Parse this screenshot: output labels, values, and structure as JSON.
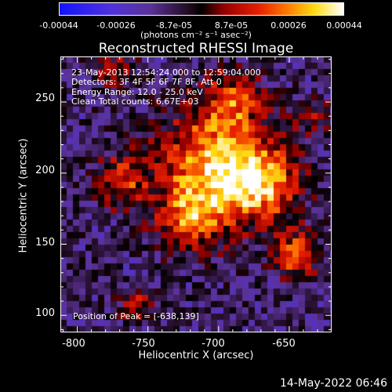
{
  "colorbar": {
    "ticks": [
      "-0.00044",
      "-0.00026",
      "-8.7e-05",
      "8.7e-05",
      "0.00026",
      "0.00044"
    ],
    "unit_label": "(photons cm⁻² s⁻¹ asec⁻²)"
  },
  "title": "Reconstructed RHESSI Image",
  "annotations": {
    "time_range": "23-May-2013 12:54:24.000 to 12:59:04.000",
    "detectors": "Detectors: 3F 4F 5F 6F 7F 8F, Att 0",
    "energy": "Energy Range: 12.0 - 25.0 keV",
    "clean": "Clean     Total counts: 6.67E+03",
    "peak": "Position of Peak = [-638,139]"
  },
  "axes": {
    "xlabel": "Heliocentric X (arcsec)",
    "ylabel": "Heliocentric Y (arcsec)",
    "xticks": [
      "-800",
      "-750",
      "-700",
      "-650"
    ],
    "yticks": [
      "250",
      "200",
      "150",
      "100"
    ]
  },
  "footer_date": "14-May-2022 06:46",
  "chart_data": {
    "type": "heatmap",
    "title": "Reconstructed RHESSI Image",
    "xlabel": "Heliocentric X (arcsec)",
    "ylabel": "Heliocentric Y (arcsec)",
    "xlim": [
      -812,
      -620
    ],
    "ylim": [
      88,
      282
    ],
    "colorbar_range": [
      -0.00044,
      0.00044
    ],
    "colormap": "blue-purple-black-red-orange-yellow-white",
    "peak": [
      -638,
      139
    ]
  }
}
